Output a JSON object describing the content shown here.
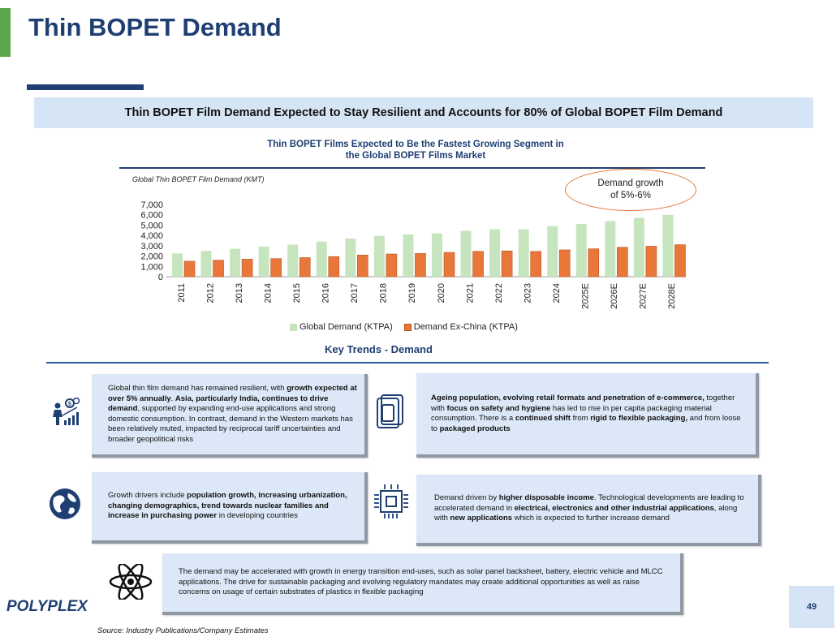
{
  "header": {
    "title": "Thin BOPET Demand",
    "banner": "Thin BOPET Film Demand Expected to Stay Resilient and Accounts for 80% of Global BOPET Film Demand"
  },
  "colors": {
    "navy": "#1f3f73",
    "accent_green": "#5aa64a",
    "light_green_series": "#c6e4bd",
    "orange_series": "#e9773a"
  },
  "chart_data": {
    "type": "bar",
    "title_line1": "Thin BOPET Films Expected to Be the Fastest Growing Segment in",
    "title_line2": "the Global BOPET Films Market",
    "ylabel": "Global Thin BOPET Film Demand (KMT)",
    "ylim": [
      0,
      7000
    ],
    "yticks": [
      "7,000",
      "6,000",
      "5,000",
      "4,000",
      "3,000",
      "2,000",
      "1,000",
      "0"
    ],
    "categories": [
      "2011",
      "2012",
      "2013",
      "2014",
      "2015",
      "2016",
      "2017",
      "2018",
      "2019",
      "2020",
      "2021",
      "2022",
      "2023",
      "2024",
      "2025E",
      "2026E",
      "2027E",
      "2028E"
    ],
    "series": [
      {
        "name": "Global Demand (KTPA)",
        "values": [
          2250,
          2500,
          2700,
          2900,
          3100,
          3400,
          3700,
          3950,
          4100,
          4200,
          4450,
          4600,
          4600,
          4900,
          5100,
          5400,
          5700,
          6000
        ]
      },
      {
        "name": "Demand Ex-China (KTPA)",
        "values": [
          1500,
          1600,
          1700,
          1750,
          1850,
          1950,
          2100,
          2200,
          2250,
          2350,
          2450,
          2500,
          2450,
          2600,
          2700,
          2850,
          2950,
          3100
        ]
      }
    ],
    "annotation_line1": "Demand growth",
    "annotation_line2": "of 5%-6%"
  },
  "key_trends": {
    "heading": "Key Trends - Demand",
    "box1": {
      "t1": "Global thin film demand has remained resilient, with ",
      "b1": "growth expected at over 5% annually",
      "t2": ". ",
      "b2": "Asia, particularly India, continues to drive demand",
      "t3": ", supported by expanding end-use applications and strong domestic consumption. In contrast, demand in the Western markets has been relatively muted, impacted by reciprocal tariff uncertainties and broader geopolitical risks"
    },
    "box2": {
      "b1": "Ageing population, evolving retail formats and penetration of e-commerce,",
      "t1": " together with ",
      "b2": "focus on safety and hygiene",
      "t2": " has led to rise in per capita packaging material consumption. There is a ",
      "b3": "continued shift",
      "t3": " from ",
      "b4": "rigid to flexible packaging,",
      "t4": " and from loose to ",
      "b5": "packaged products"
    },
    "box3": {
      "t1": "Growth drivers include ",
      "b1": "population growth, increasing urbanization, changing demographics, trend towards nuclear families and increase in purchasing power",
      "t2": " in developing countries"
    },
    "box4": {
      "t1": "Demand driven by ",
      "b1": "higher disposable income",
      "t2": ". Technological developments are leading to accelerated demand in ",
      "b2": "electrical, electronics and other industrial applications",
      "t3": ", along with ",
      "b3": "new applications",
      "t4": " which is expected to further increase demand"
    },
    "box5": {
      "t1": "The demand may be accelerated with growth in energy transition end-uses, such as solar panel backsheet, battery, electric vehicle and MLCC applications. The drive for sustainable packaging and evolving regulatory mandates may create additional opportunities as well as raise concerns on usage of certain substrates of plastics in flexible packaging"
    }
  },
  "footer": {
    "logo": "POLYPLEX",
    "source": "Source: Industry Publications/Company Estimates",
    "page_number": "49"
  }
}
